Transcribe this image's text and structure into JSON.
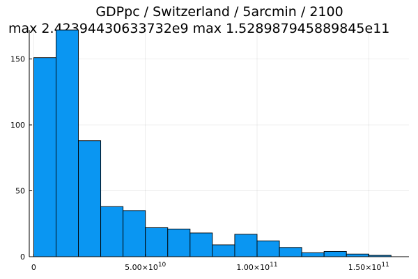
{
  "chart_data": {
    "type": "bar",
    "title": "GDPpc / Switzerland / 5arcmin / 2100",
    "subtitle": "max 2.42394430633732e9  max 1.528987945889845e11",
    "xlabel": "",
    "ylabel": "",
    "bin_edges": [
      0,
      10000000000,
      20000000000,
      30000000000,
      40000000000,
      50000000000,
      60000000000,
      70000000000,
      80000000000,
      90000000000,
      100000000000,
      110000000000,
      120000000000,
      130000000000,
      140000000000,
      150000000000,
      160000000000
    ],
    "values": [
      151,
      172,
      88,
      38,
      35,
      22,
      21,
      18,
      9,
      17,
      12,
      7,
      3,
      4,
      2,
      1
    ],
    "xlim": [
      -2000000000,
      168000000000
    ],
    "ylim": [
      0,
      172
    ],
    "x_ticks": [
      {
        "value": 0,
        "mantissa": "0",
        "exp": ""
      },
      {
        "value": 50000000000,
        "mantissa": "5.00×10",
        "exp": "10"
      },
      {
        "value": 100000000000,
        "mantissa": "1.00×10",
        "exp": "11"
      },
      {
        "value": 150000000000,
        "mantissa": "1.50×10",
        "exp": "11"
      }
    ],
    "y_ticks": [
      {
        "value": 0,
        "label": "0"
      },
      {
        "value": 50,
        "label": "50"
      },
      {
        "value": 100,
        "label": "100"
      },
      {
        "value": 150,
        "label": "150"
      }
    ],
    "grid": true,
    "legend": false,
    "bar_color": "#0a96f2"
  }
}
